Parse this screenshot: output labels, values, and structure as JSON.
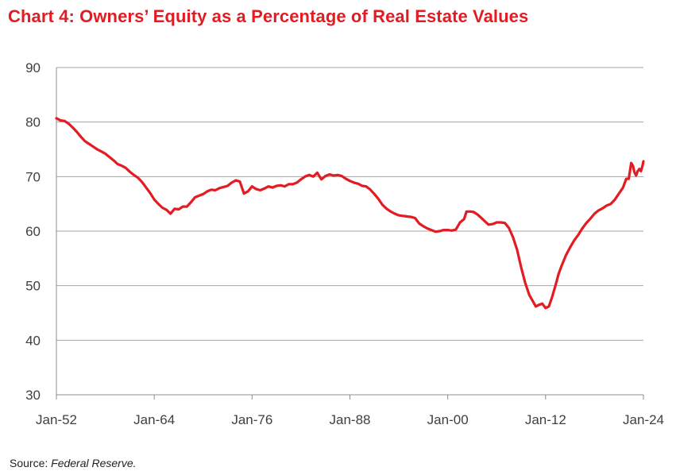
{
  "title": "Chart 4: Owners’ Equity as a Percentage of Real Estate Values",
  "source": {
    "label": "Source:",
    "value": "Federal Reserve."
  },
  "chart_data": {
    "type": "line",
    "title": "Chart 4: Owners’ Equity as a Percentage of Real Estate Values",
    "xlabel": "",
    "ylabel": "",
    "xlim": [
      1952,
      2024
    ],
    "ylim": [
      30,
      90
    ],
    "grid": true,
    "legend": "none",
    "y_ticks": [
      30,
      40,
      50,
      60,
      70,
      80,
      90
    ],
    "x_ticks": [
      {
        "value": 1952,
        "label": "Jan-52"
      },
      {
        "value": 1964,
        "label": "Jan-64"
      },
      {
        "value": 1976,
        "label": "Jan-76"
      },
      {
        "value": 1988,
        "label": "Jan-88"
      },
      {
        "value": 2000,
        "label": "Jan-00"
      },
      {
        "value": 2012,
        "label": "Jan-12"
      },
      {
        "value": 2024,
        "label": "Jan-24"
      }
    ],
    "series": [
      {
        "name": "Owners' equity as % of real estate values",
        "color": "#e31b23",
        "points": [
          [
            1952.0,
            80.7
          ],
          [
            1952.5,
            80.3
          ],
          [
            1953.0,
            80.2
          ],
          [
            1953.5,
            79.7
          ],
          [
            1954.0,
            79.0
          ],
          [
            1954.5,
            78.2
          ],
          [
            1955.0,
            77.3
          ],
          [
            1955.5,
            76.5
          ],
          [
            1956.0,
            76.0
          ],
          [
            1956.5,
            75.5
          ],
          [
            1957.0,
            75.0
          ],
          [
            1957.5,
            74.6
          ],
          [
            1958.0,
            74.2
          ],
          [
            1958.5,
            73.6
          ],
          [
            1959.0,
            73.0
          ],
          [
            1959.5,
            72.3
          ],
          [
            1960.0,
            72.0
          ],
          [
            1960.5,
            71.6
          ],
          [
            1961.0,
            70.9
          ],
          [
            1961.5,
            70.3
          ],
          [
            1962.0,
            69.8
          ],
          [
            1962.5,
            69.0
          ],
          [
            1963.0,
            68.0
          ],
          [
            1963.5,
            67.0
          ],
          [
            1964.0,
            65.8
          ],
          [
            1964.5,
            65.0
          ],
          [
            1965.0,
            64.3
          ],
          [
            1965.5,
            63.9
          ],
          [
            1966.0,
            63.2
          ],
          [
            1966.5,
            64.1
          ],
          [
            1967.0,
            64.0
          ],
          [
            1967.5,
            64.5
          ],
          [
            1968.0,
            64.5
          ],
          [
            1968.5,
            65.3
          ],
          [
            1969.0,
            66.2
          ],
          [
            1969.5,
            66.5
          ],
          [
            1970.0,
            66.8
          ],
          [
            1970.5,
            67.3
          ],
          [
            1971.0,
            67.6
          ],
          [
            1971.5,
            67.5
          ],
          [
            1972.0,
            67.9
          ],
          [
            1972.5,
            68.1
          ],
          [
            1973.0,
            68.3
          ],
          [
            1973.5,
            68.9
          ],
          [
            1974.0,
            69.3
          ],
          [
            1974.5,
            69.1
          ],
          [
            1975.0,
            66.9
          ],
          [
            1975.5,
            67.3
          ],
          [
            1976.0,
            68.2
          ],
          [
            1976.5,
            67.7
          ],
          [
            1977.0,
            67.5
          ],
          [
            1977.5,
            67.8
          ],
          [
            1978.0,
            68.2
          ],
          [
            1978.5,
            68.0
          ],
          [
            1979.0,
            68.3
          ],
          [
            1979.5,
            68.4
          ],
          [
            1980.0,
            68.2
          ],
          [
            1980.5,
            68.6
          ],
          [
            1981.0,
            68.6
          ],
          [
            1981.5,
            68.9
          ],
          [
            1982.0,
            69.5
          ],
          [
            1982.5,
            70.0
          ],
          [
            1983.0,
            70.3
          ],
          [
            1983.5,
            70.0
          ],
          [
            1984.0,
            70.7
          ],
          [
            1984.5,
            69.5
          ],
          [
            1985.0,
            70.1
          ],
          [
            1985.5,
            70.4
          ],
          [
            1986.0,
            70.2
          ],
          [
            1986.5,
            70.3
          ],
          [
            1987.0,
            70.1
          ],
          [
            1987.5,
            69.6
          ],
          [
            1988.0,
            69.2
          ],
          [
            1988.5,
            68.9
          ],
          [
            1989.0,
            68.7
          ],
          [
            1989.5,
            68.3
          ],
          [
            1990.0,
            68.2
          ],
          [
            1990.5,
            67.6
          ],
          [
            1991.0,
            66.8
          ],
          [
            1991.5,
            65.9
          ],
          [
            1992.0,
            64.8
          ],
          [
            1992.5,
            64.1
          ],
          [
            1993.0,
            63.6
          ],
          [
            1993.5,
            63.2
          ],
          [
            1994.0,
            62.9
          ],
          [
            1994.5,
            62.8
          ],
          [
            1995.0,
            62.7
          ],
          [
            1995.5,
            62.6
          ],
          [
            1996.0,
            62.4
          ],
          [
            1996.5,
            61.4
          ],
          [
            1997.0,
            60.9
          ],
          [
            1997.5,
            60.5
          ],
          [
            1998.0,
            60.2
          ],
          [
            1998.5,
            59.9
          ],
          [
            1999.0,
            60.0
          ],
          [
            1999.5,
            60.2
          ],
          [
            2000.0,
            60.2
          ],
          [
            2000.5,
            60.1
          ],
          [
            2001.0,
            60.3
          ],
          [
            2001.5,
            61.6
          ],
          [
            2002.0,
            62.2
          ],
          [
            2002.3,
            63.6
          ],
          [
            2002.8,
            63.6
          ],
          [
            2003.2,
            63.5
          ],
          [
            2003.7,
            63.0
          ],
          [
            2004.2,
            62.3
          ],
          [
            2004.7,
            61.6
          ],
          [
            2005.0,
            61.2
          ],
          [
            2005.5,
            61.3
          ],
          [
            2006.0,
            61.6
          ],
          [
            2006.5,
            61.6
          ],
          [
            2007.0,
            61.5
          ],
          [
            2007.5,
            60.6
          ],
          [
            2008.0,
            58.9
          ],
          [
            2008.5,
            56.6
          ],
          [
            2009.0,
            53.4
          ],
          [
            2009.5,
            50.5
          ],
          [
            2010.0,
            48.3
          ],
          [
            2010.5,
            47.0
          ],
          [
            2010.8,
            46.2
          ],
          [
            2011.2,
            46.5
          ],
          [
            2011.6,
            46.7
          ],
          [
            2012.0,
            45.9
          ],
          [
            2012.4,
            46.2
          ],
          [
            2012.8,
            47.9
          ],
          [
            2013.2,
            50.0
          ],
          [
            2013.6,
            52.2
          ],
          [
            2014.0,
            53.8
          ],
          [
            2014.5,
            55.6
          ],
          [
            2015.0,
            57.0
          ],
          [
            2015.5,
            58.3
          ],
          [
            2016.0,
            59.3
          ],
          [
            2016.5,
            60.5
          ],
          [
            2017.0,
            61.5
          ],
          [
            2017.5,
            62.3
          ],
          [
            2018.0,
            63.2
          ],
          [
            2018.5,
            63.8
          ],
          [
            2019.0,
            64.2
          ],
          [
            2019.5,
            64.7
          ],
          [
            2020.0,
            65.0
          ],
          [
            2020.5,
            65.8
          ],
          [
            2021.0,
            66.9
          ],
          [
            2021.5,
            68.0
          ],
          [
            2021.9,
            69.6
          ],
          [
            2022.2,
            69.6
          ],
          [
            2022.5,
            72.5
          ],
          [
            2022.7,
            72.0
          ],
          [
            2022.9,
            70.8
          ],
          [
            2023.1,
            70.2
          ],
          [
            2023.3,
            71.0
          ],
          [
            2023.5,
            71.4
          ],
          [
            2023.7,
            71.0
          ],
          [
            2023.9,
            72.1
          ],
          [
            2024.0,
            72.8
          ]
        ]
      }
    ]
  }
}
